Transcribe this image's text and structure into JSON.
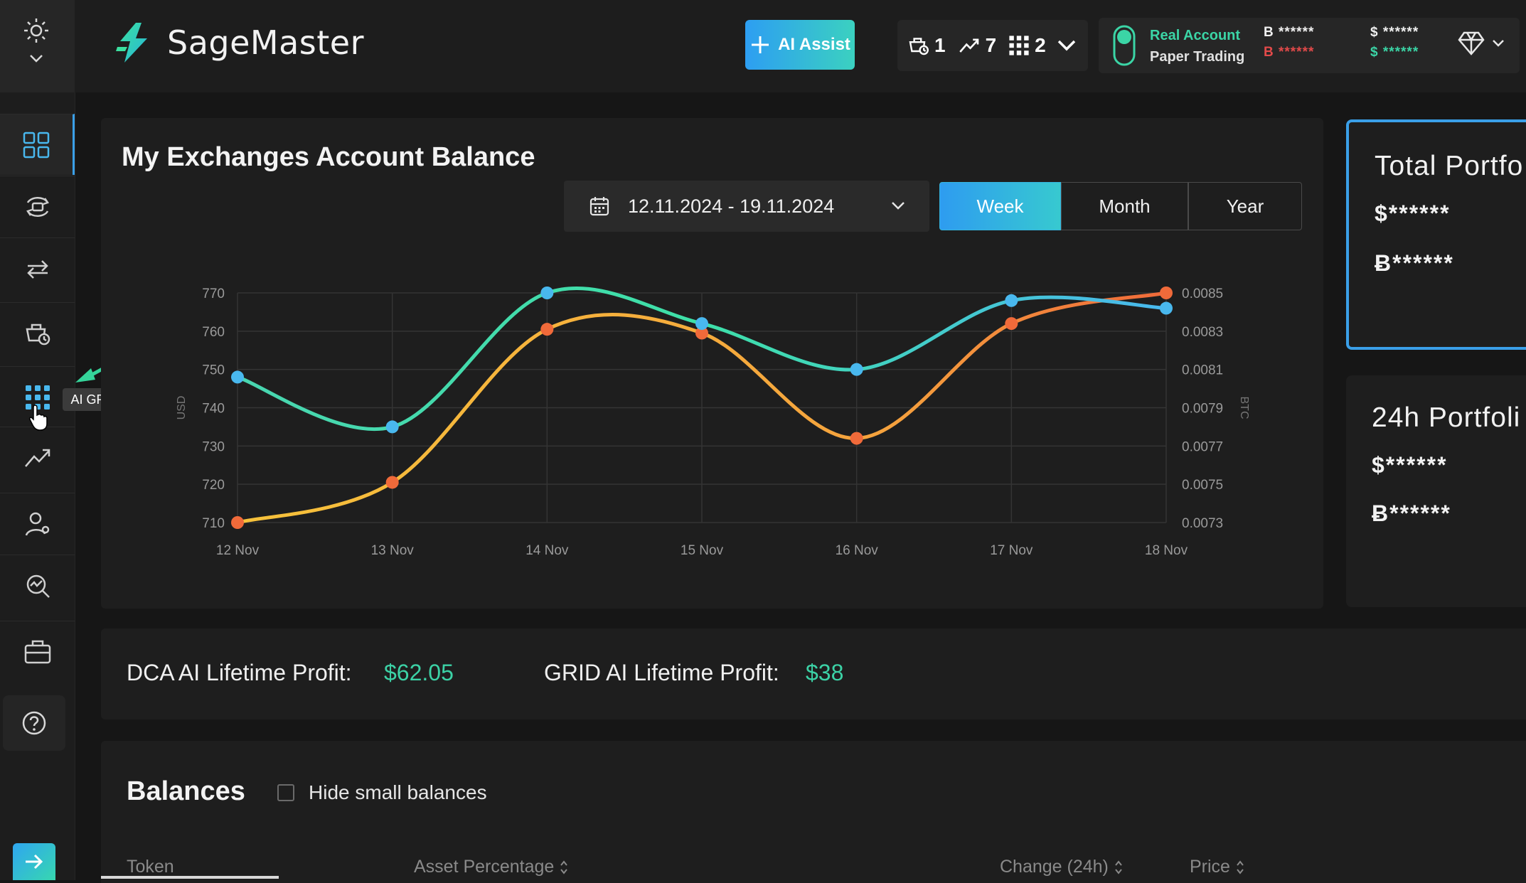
{
  "app": {
    "brand_name": "SageMaster"
  },
  "topbar": {
    "ai_assist_label": "AI Assist",
    "counters": {
      "dca": "1",
      "trades": "7",
      "grid": "2"
    },
    "account": {
      "real_label": "Real Account",
      "paper_label": "Paper Trading",
      "btc_masked": "B ******",
      "btc_masked_2": "B ******",
      "usd_masked": "$ ******",
      "usd_masked_2": "$ ******"
    }
  },
  "sidebar": {
    "tooltip": "AI GRID",
    "items": [
      "dashboard-icon",
      "dca-bots-icon",
      "trades-icon",
      "smart-trade-icon",
      "ai-grid-icon",
      "signals-icon",
      "affiliate-icon",
      "scanner-icon",
      "portfolio-icon",
      "help-icon"
    ]
  },
  "balance_card": {
    "title": "My Exchanges Account Balance",
    "date_range": "12.11.2024 - 19.11.2024",
    "periods": [
      "Week",
      "Month",
      "Year"
    ],
    "selected_period": "Week"
  },
  "chart_data": {
    "type": "line",
    "x": [
      "12 Nov",
      "13 Nov",
      "14 Nov",
      "15 Nov",
      "16 Nov",
      "17 Nov",
      "18 Nov"
    ],
    "ylabel": "USD",
    "ylabel_right": "BTC",
    "ylim": [
      710,
      770
    ],
    "yticks": [
      "770",
      "760",
      "750",
      "740",
      "730",
      "720",
      "710"
    ],
    "ylim_right": [
      0.0073,
      0.0085
    ],
    "yticks_right": [
      "0.0085",
      "0.0083",
      "0.0081",
      "0.0079",
      "0.0077",
      "0.0075",
      "0.0073"
    ],
    "grid": true,
    "series": [
      {
        "axis": "left",
        "color": "#3ee0a8",
        "point_color": "#49b8ee",
        "values": [
          748,
          735,
          770,
          762,
          750,
          768,
          766
        ]
      },
      {
        "axis": "right",
        "color": "#f5b83d",
        "point_color": "#f06a3a",
        "values": [
          0.0073,
          0.00751,
          0.00831,
          0.00829,
          0.00774,
          0.00834,
          0.0085
        ]
      }
    ]
  },
  "portfolio": {
    "total_title": "Total Portfo",
    "total_usd": "$******",
    "total_btc": "Ƀ******",
    "day_title": "24h Portfoli",
    "day_usd": "$******",
    "day_btc": "Ƀ******"
  },
  "profits": {
    "dca_label": "DCA AI Lifetime Profit:",
    "dca_value": "$62.05",
    "grid_label": "GRID AI Lifetime Profit:",
    "grid_value": "$38"
  },
  "balances": {
    "title": "Balances",
    "hide_small_label": "Hide small balances",
    "columns": [
      "Token",
      "Asset Percentage",
      "Change (24h)",
      "Price"
    ]
  },
  "colors": {
    "accent_blue": "#2d9ef2",
    "accent_green": "#3bd5a6",
    "bg": "#161616",
    "card": "#1e1e1e"
  }
}
